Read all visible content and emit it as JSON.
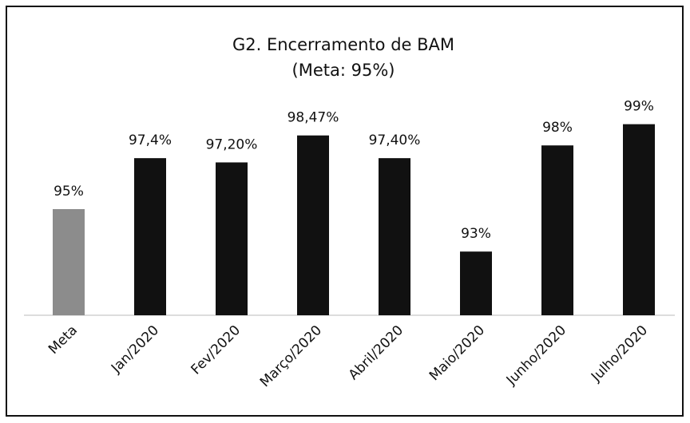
{
  "chart_data": {
    "type": "bar",
    "title": "G2. Encerramento de BAM",
    "subtitle": "(Meta: 95%)",
    "categories": [
      "Meta",
      "Jan/2020",
      "Fev/2020",
      "Março/2020",
      "Abril/2020",
      "Maio/2020",
      "Junho/2020",
      "Julho/2020"
    ],
    "values": [
      95,
      97.4,
      97.2,
      98.47,
      97.4,
      93,
      98,
      99
    ],
    "value_labels": [
      "95%",
      "97,4%",
      "97,20%",
      "98,47%",
      "97,40%",
      "93%",
      "98%",
      "99%"
    ],
    "colors": [
      "#8c8c8c",
      "#111111",
      "#111111",
      "#111111",
      "#111111",
      "#111111",
      "#111111",
      "#111111"
    ],
    "ylim": [
      90,
      100
    ]
  }
}
